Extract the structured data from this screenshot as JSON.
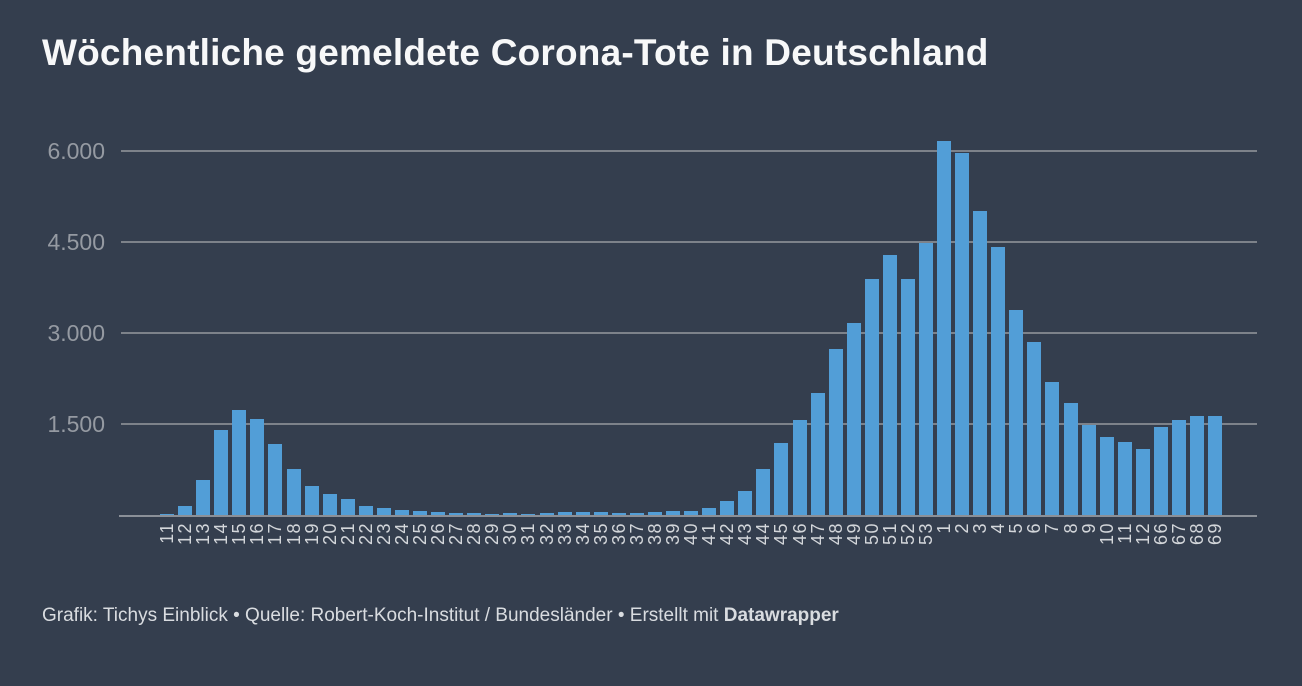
{
  "title": "Wöchentliche gemeldete Corona-Tote in Deutschland",
  "footer": {
    "text": "Grafik: Tichys Einblick • Quelle: Robert-Koch-Institut / Bundesländer • Erstellt mit ",
    "brand": "Datawrapper"
  },
  "colors": {
    "background": "#343e4e",
    "bar": "#529ed7",
    "gridline": "#7d828a",
    "baseline": "#8b9098",
    "y_axis_label": "#959aa2",
    "x_tick_label": "#d3d6da",
    "title_text": "#f7f8f9",
    "footer_text": "#d9dce0"
  },
  "chart_data": {
    "type": "bar",
    "title": "Wöchentliche gemeldete Corona-Tote in Deutschland",
    "xlabel": "",
    "ylabel": "",
    "legend": "none",
    "grid": "horizontal",
    "ylim": [
      0,
      6300
    ],
    "yticks": [
      {
        "value": 1500,
        "label": "1.500"
      },
      {
        "value": 3000,
        "label": "3.000"
      },
      {
        "value": 4500,
        "label": "4.500"
      },
      {
        "value": 6000,
        "label": "6.000"
      }
    ],
    "categories": [
      "11",
      "12",
      "13",
      "14",
      "15",
      "16",
      "17",
      "18",
      "19",
      "20",
      "21",
      "22",
      "23",
      "24",
      "25",
      "26",
      "27",
      "28",
      "29",
      "30",
      "31",
      "32",
      "33",
      "34",
      "35",
      "36",
      "37",
      "38",
      "39",
      "40",
      "41",
      "42",
      "43",
      "44",
      "45",
      "46",
      "47",
      "48",
      "49",
      "50",
      "51",
      "52",
      "53",
      "1",
      "2",
      "3",
      "4",
      "5",
      "6",
      "7",
      "8",
      "9",
      "10",
      "11",
      "12",
      "66",
      "67",
      "68",
      "69"
    ],
    "values": [
      20,
      150,
      580,
      1400,
      1730,
      1590,
      1170,
      760,
      480,
      340,
      260,
      150,
      110,
      80,
      65,
      50,
      40,
      25,
      20,
      40,
      20,
      25,
      45,
      45,
      45,
      25,
      35,
      55,
      70,
      60,
      115,
      230,
      390,
      760,
      1190,
      1570,
      2010,
      2730,
      3160,
      3890,
      4290,
      3890,
      4490,
      6160,
      5970,
      5010,
      4410,
      3380,
      2850,
      2200,
      1850,
      1480,
      1290,
      1210,
      1090,
      1450,
      1570,
      1640,
      1640
    ]
  }
}
